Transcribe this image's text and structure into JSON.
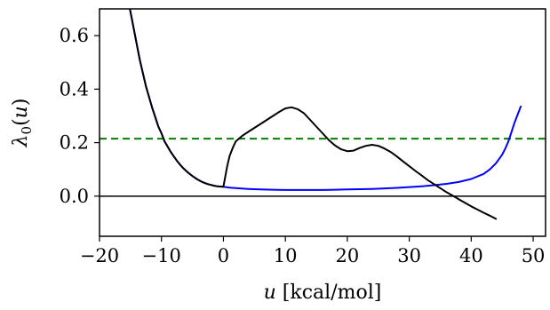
{
  "chart_data": {
    "type": "line",
    "title": "",
    "xlabel": {
      "var": "u",
      "unit": " [kcal/mol]"
    },
    "ylabel": {
      "var": "λ",
      "sub": "0",
      "arg_open": "(",
      "arg": "u",
      "arg_close": ")"
    },
    "xlim": [
      -20,
      52
    ],
    "ylim": [
      -0.15,
      0.7
    ],
    "xticks": [
      {
        "value": -20,
        "label": "−20"
      },
      {
        "value": -10,
        "label": "−10"
      },
      {
        "value": 0,
        "label": "0"
      },
      {
        "value": 10,
        "label": "10"
      },
      {
        "value": 20,
        "label": "20"
      },
      {
        "value": 30,
        "label": "30"
      },
      {
        "value": 40,
        "label": "40"
      },
      {
        "value": 50,
        "label": "50"
      }
    ],
    "yticks": [
      {
        "value": 0.0,
        "label": "0.0"
      },
      {
        "value": 0.2,
        "label": "0.2"
      },
      {
        "value": 0.4,
        "label": "0.4"
      },
      {
        "value": 0.6,
        "label": "0.6"
      }
    ],
    "grid": false,
    "reference_lines": [
      {
        "y": 0.0,
        "color": "#000000",
        "style": "solid"
      },
      {
        "y": 0.215,
        "color": "#008000",
        "style": "dashed"
      }
    ],
    "series": [
      {
        "color": "#0000ff",
        "x": [
          -15.1,
          -14.5,
          -14,
          -13.5,
          -13,
          -12.5,
          -12,
          -11.5,
          -11,
          -10.5,
          -10,
          -9.5,
          -9,
          -8.5,
          -8,
          -7.5,
          -7,
          -6.5,
          -6,
          -5.5,
          -5,
          -4.5,
          -4,
          -3.5,
          -3,
          -2.5,
          -2,
          -1.5,
          -1,
          -0.5,
          0,
          1,
          2,
          4,
          6,
          8,
          10,
          12,
          14,
          16,
          18,
          20,
          22,
          24,
          26,
          28,
          30,
          32,
          34,
          36,
          38,
          40,
          42,
          43,
          44,
          45,
          45.5,
          46,
          46.5,
          47,
          47.5,
          48
        ],
        "y": [
          0.7,
          0.63,
          0.57,
          0.51,
          0.46,
          0.41,
          0.37,
          0.33,
          0.295,
          0.26,
          0.235,
          0.205,
          0.185,
          0.165,
          0.148,
          0.132,
          0.118,
          0.105,
          0.094,
          0.084,
          0.075,
          0.067,
          0.06,
          0.054,
          0.049,
          0.045,
          0.042,
          0.039,
          0.037,
          0.036,
          0.035,
          0.032,
          0.03,
          0.027,
          0.025,
          0.024,
          0.023,
          0.023,
          0.023,
          0.023,
          0.024,
          0.025,
          0.026,
          0.027,
          0.029,
          0.031,
          0.034,
          0.037,
          0.041,
          0.046,
          0.053,
          0.064,
          0.083,
          0.1,
          0.123,
          0.155,
          0.178,
          0.205,
          0.24,
          0.275,
          0.305,
          0.335
        ]
      },
      {
        "color": "#000000",
        "x": [
          -15.1,
          -14.5,
          -14,
          -13.5,
          -13,
          -12.5,
          -12,
          -11.5,
          -11,
          -10.5,
          -10,
          -9.5,
          -9,
          -8.5,
          -8,
          -7.5,
          -7,
          -6.5,
          -6,
          -5.5,
          -5,
          -4.5,
          -4,
          -3.5,
          -3,
          -2.5,
          -2,
          -1.5,
          -1,
          -0.5,
          0,
          0.2,
          0.6,
          1,
          1.5,
          2,
          3,
          4,
          5,
          6,
          7,
          8,
          9,
          10,
          11,
          12,
          13,
          14,
          15,
          16,
          17,
          18,
          19,
          20,
          21,
          22,
          23,
          24,
          25,
          26,
          27,
          28,
          29,
          30,
          31,
          32,
          33,
          34,
          35,
          36,
          37,
          38,
          39,
          40,
          41,
          42,
          43,
          44
        ],
        "y": [
          0.7,
          0.63,
          0.57,
          0.51,
          0.46,
          0.41,
          0.37,
          0.33,
          0.295,
          0.26,
          0.235,
          0.205,
          0.185,
          0.165,
          0.148,
          0.132,
          0.118,
          0.105,
          0.094,
          0.084,
          0.075,
          0.067,
          0.06,
          0.054,
          0.049,
          0.045,
          0.042,
          0.039,
          0.037,
          0.036,
          0.035,
          0.06,
          0.11,
          0.15,
          0.18,
          0.205,
          0.225,
          0.24,
          0.255,
          0.27,
          0.285,
          0.3,
          0.315,
          0.328,
          0.332,
          0.325,
          0.31,
          0.285,
          0.26,
          0.235,
          0.21,
          0.19,
          0.175,
          0.168,
          0.17,
          0.18,
          0.188,
          0.192,
          0.188,
          0.178,
          0.165,
          0.148,
          0.13,
          0.112,
          0.094,
          0.077,
          0.06,
          0.045,
          0.03,
          0.015,
          0.002,
          -0.012,
          -0.025,
          -0.038,
          -0.05,
          -0.062,
          -0.073,
          -0.085
        ]
      }
    ]
  }
}
